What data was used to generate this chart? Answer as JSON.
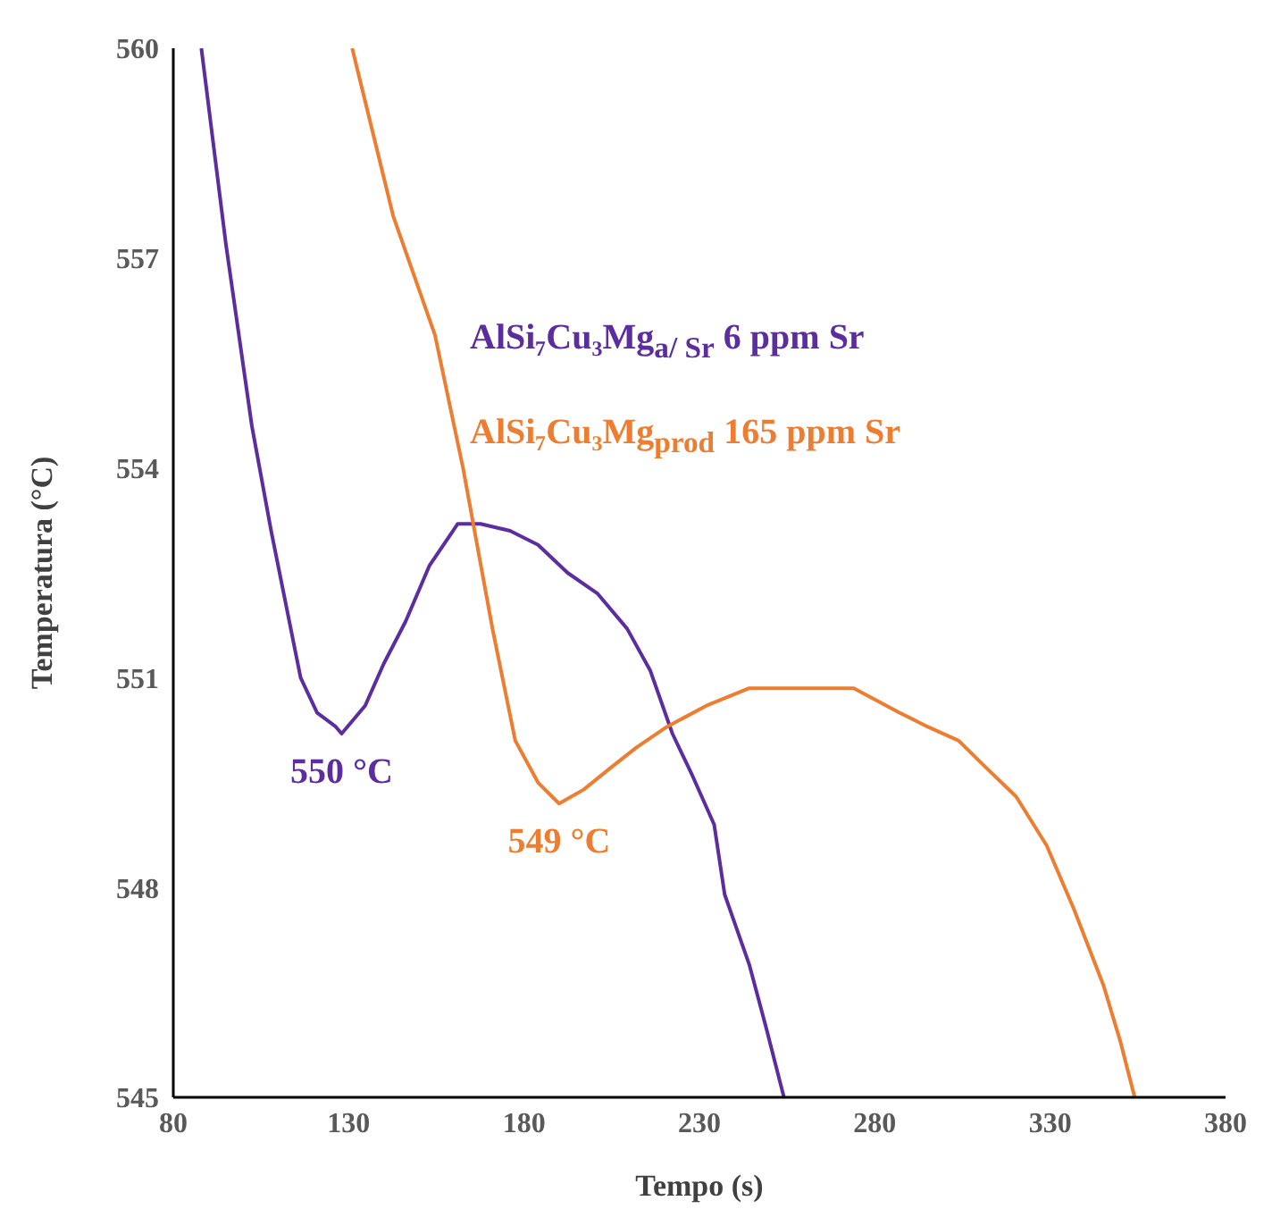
{
  "chart_data": {
    "type": "line",
    "xlabel": "Tempo (s)",
    "ylabel": "Temperatura (°C)",
    "xlim": [
      80,
      380
    ],
    "xticks": [
      80,
      130,
      180,
      230,
      280,
      330,
      380
    ],
    "ylim": [
      545,
      560
    ],
    "yticks": [
      545,
      548,
      551,
      554,
      557,
      560
    ],
    "legend": "right",
    "marker": "none",
    "series": [
      {
        "name": "AlSi₇Cu₃Mg$_{a/ Sr}$ 6 ppm Sr",
        "color": "#5b2d9e",
        "x": [
          88,
          95,
          102.4,
          107.9,
          116.3,
          121,
          126.3,
          128,
          134.7,
          140,
          146.2,
          153,
          161.1,
          167.6,
          176,
          184,
          192.4,
          201,
          209.4,
          216,
          222.3,
          228,
          234.2,
          237.2,
          244.2,
          249,
          254.1
        ],
        "values": [
          560,
          557.2,
          554.6,
          553.1,
          551,
          550.5,
          550.3,
          550.2,
          550.6,
          551.2,
          551.8,
          552.6,
          553.2,
          553.2,
          553.1,
          552.9,
          552.5,
          552.2,
          551.7,
          551.1,
          550.2,
          549.6,
          548.9,
          547.9,
          546.9,
          546,
          545
        ]
      },
      {
        "name": "AlSi₇Cu₃Mg$_{prod}$ 165 ppm Sr",
        "color": "#ed7d31",
        "x": [
          131,
          142.7,
          154.6,
          162.6,
          171,
          177.5,
          184,
          190,
          197,
          204.4,
          212,
          220.8,
          232,
          244.2,
          260,
          274,
          287,
          295,
          303.9,
          312,
          320.3,
          329,
          336.7,
          345.2,
          350,
          354.1
        ],
        "values": [
          560,
          557.6,
          555.9,
          554,
          551.7,
          550.1,
          549.5,
          549.2,
          549.4,
          549.7,
          550,
          550.3,
          550.6,
          550.85,
          550.85,
          550.85,
          550.5,
          550.3,
          550.1,
          549.7,
          549.3,
          548.6,
          547.7,
          546.6,
          545.8,
          545
        ]
      }
    ],
    "annotations": [
      {
        "text": "550 °C",
        "x": 128,
        "y": 550.2
      },
      {
        "text": "549 °C",
        "x": 190,
        "y": 549.2
      }
    ]
  }
}
